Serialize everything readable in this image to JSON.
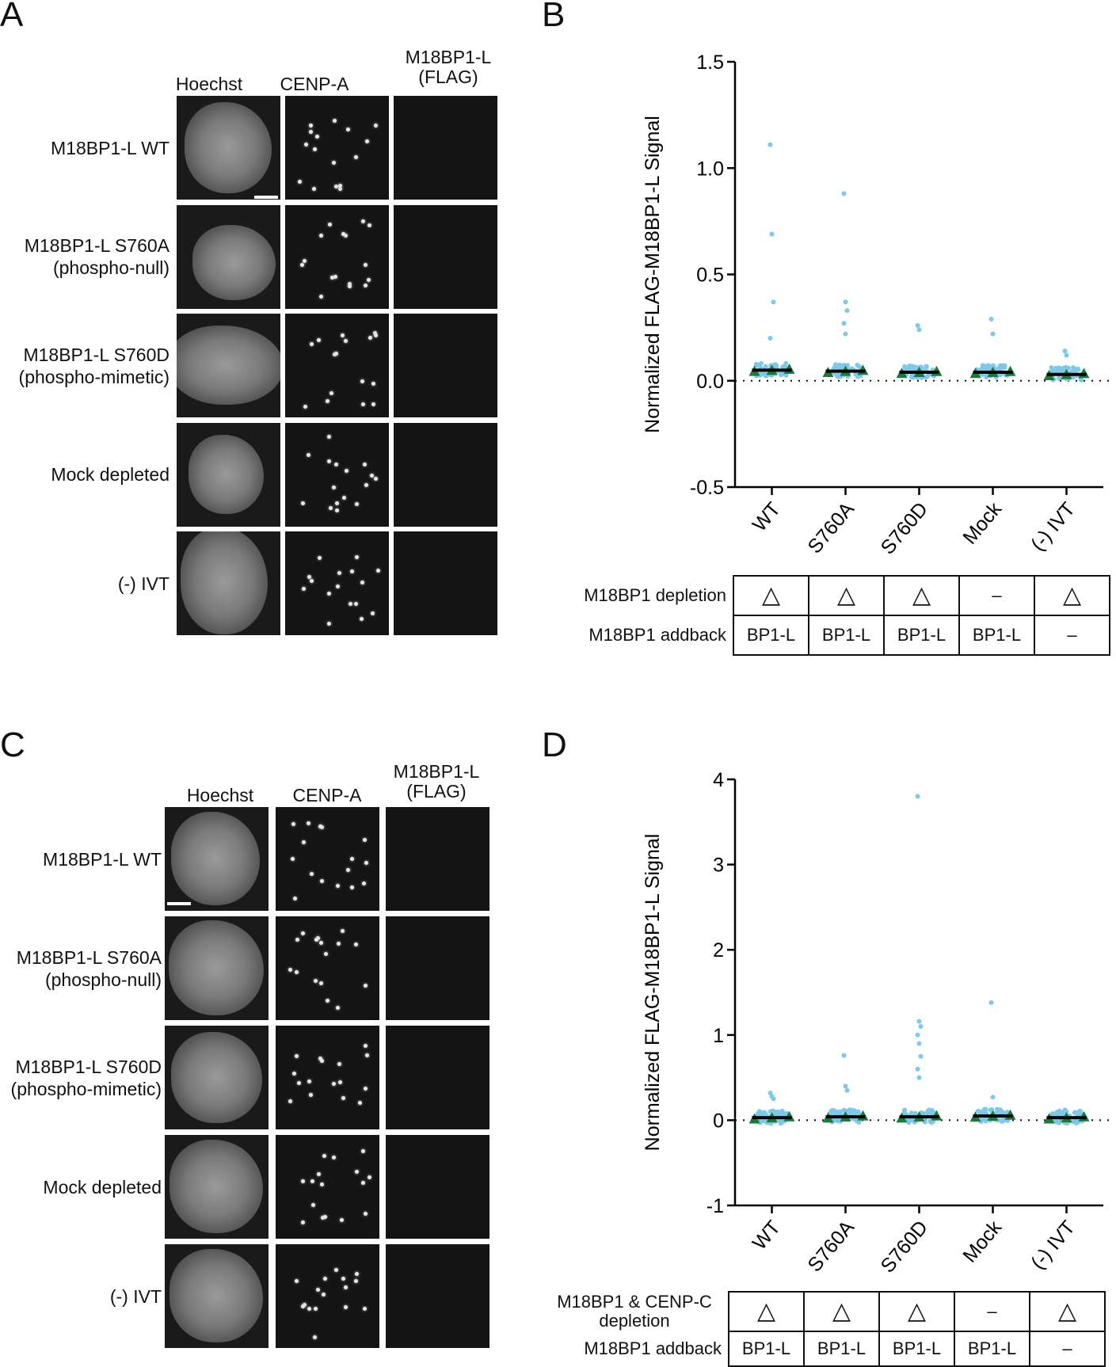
{
  "panels": {
    "A": {
      "letter": "A",
      "columns": [
        "Hoechst",
        "CENP-A",
        "M18BP1-L\n(FLAG)"
      ],
      "rows": [
        "M18BP1-L WT",
        "M18BP1-L S760A\n(phospho-null)",
        "M18BP1-L S760D\n(phospho-mimetic)",
        "Mock depleted",
        "(-) IVT"
      ]
    },
    "B": {
      "letter": "B",
      "ylabel": "Normalized FLAG-M18BP1-L Signal",
      "yticks": [
        "1.5",
        "1.0",
        "0.5",
        "0.0",
        "-0.5"
      ],
      "xticks": [
        "WT",
        "S760A",
        "S760D",
        "Mock",
        "(-) IVT"
      ],
      "table": {
        "row1_label": "M18BP1 depletion",
        "row1": [
          "△",
          "△",
          "△",
          "–",
          "△"
        ],
        "row2_label": "M18BP1 addback",
        "row2": [
          "BP1-L",
          "BP1-L",
          "BP1-L",
          "BP1-L",
          "–"
        ]
      }
    },
    "C": {
      "letter": "C",
      "columns": [
        "Hoechst",
        "CENP-A",
        "M18BP1-L\n(FLAG)"
      ],
      "rows": [
        "M18BP1-L WT",
        "M18BP1-L S760A\n(phospho-null)",
        "M18BP1-L S760D\n(phospho-mimetic)",
        "Mock depleted",
        "(-) IVT"
      ]
    },
    "D": {
      "letter": "D",
      "ylabel": "Normalized FLAG-M18BP1-L Signal",
      "yticks": [
        "4",
        "3",
        "2",
        "1",
        "0",
        "-1"
      ],
      "xticks": [
        "WT",
        "S760A",
        "S760D",
        "Mock",
        "(-) IVT"
      ],
      "table": {
        "row1_label": "M18BP1 & CENP-C\ndepletion",
        "row1": [
          "△",
          "△",
          "△",
          "–",
          "△"
        ],
        "row2_label": "M18BP1 addback",
        "row2": [
          "BP1-L",
          "BP1-L",
          "BP1-L",
          "BP1-L",
          "–"
        ]
      }
    }
  },
  "colors": {
    "points": "#7ec8e8",
    "means": "#1a7a3a",
    "bar": "#000000"
  },
  "chart_data": [
    {
      "type": "scatter",
      "panel": "B",
      "ylabel": "Normalized FLAG-M18BP1-L Signal",
      "categories": [
        "WT",
        "S760A",
        "S760D",
        "Mock",
        "(-) IVT"
      ],
      "ylim": [
        -0.5,
        1.5
      ],
      "reference_line_y": 0,
      "mean_values": [
        0.05,
        0.045,
        0.04,
        0.04,
        0.03
      ],
      "outliers": [
        {
          "category": "WT",
          "values": [
            1.11,
            0.69,
            0.37,
            0.2
          ]
        },
        {
          "category": "S760A",
          "values": [
            0.88,
            0.37,
            0.33,
            0.27,
            0.22
          ]
        },
        {
          "category": "S760D",
          "values": [
            0.26,
            0.24
          ]
        },
        {
          "category": "Mock",
          "values": [
            0.29,
            0.22
          ]
        },
        {
          "category": "(-) IVT",
          "values": [
            0.14,
            0.12
          ]
        }
      ]
    },
    {
      "type": "scatter",
      "panel": "D",
      "ylabel": "Normalized FLAG-M18BP1-L Signal",
      "categories": [
        "WT",
        "S760A",
        "S760D",
        "Mock",
        "(-) IVT"
      ],
      "ylim": [
        -1,
        4
      ],
      "reference_line_y": 0,
      "mean_values": [
        0.03,
        0.04,
        0.04,
        0.05,
        0.03
      ],
      "outliers": [
        {
          "category": "WT",
          "values": [
            0.32,
            0.28,
            0.25
          ]
        },
        {
          "category": "S760A",
          "values": [
            0.76,
            0.4,
            0.35
          ]
        },
        {
          "category": "S760D",
          "values": [
            3.8,
            1.16,
            1.1,
            1.0,
            0.9,
            0.75,
            0.6,
            0.5
          ]
        },
        {
          "category": "Mock",
          "values": [
            1.38,
            0.27
          ]
        },
        {
          "category": "(-) IVT",
          "values": [
            0.12,
            0.1
          ]
        }
      ]
    }
  ]
}
